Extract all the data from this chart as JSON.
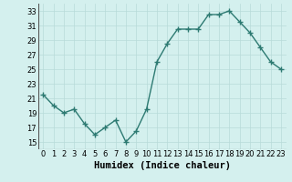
{
  "x": [
    0,
    1,
    2,
    3,
    4,
    5,
    6,
    7,
    8,
    9,
    10,
    11,
    12,
    13,
    14,
    15,
    16,
    17,
    18,
    19,
    20,
    21,
    22,
    23
  ],
  "y": [
    21.5,
    20.0,
    19.0,
    19.5,
    17.5,
    16.0,
    17.0,
    18.0,
    15.0,
    16.5,
    19.5,
    26.0,
    28.5,
    30.5,
    30.5,
    30.5,
    32.5,
    32.5,
    33.0,
    31.5,
    30.0,
    28.0,
    26.0,
    25.0
  ],
  "xlabel": "Humidex (Indice chaleur)",
  "xlim": [
    -0.5,
    23.5
  ],
  "ylim": [
    14,
    34
  ],
  "yticks": [
    15,
    17,
    19,
    21,
    23,
    25,
    27,
    29,
    31,
    33
  ],
  "xticks": [
    0,
    1,
    2,
    3,
    4,
    5,
    6,
    7,
    8,
    9,
    10,
    11,
    12,
    13,
    14,
    15,
    16,
    17,
    18,
    19,
    20,
    21,
    22,
    23
  ],
  "xtick_labels": [
    "0",
    "1",
    "2",
    "3",
    "4",
    "5",
    "6",
    "7",
    "8",
    "9",
    "10",
    "11",
    "12",
    "13",
    "14",
    "15",
    "16",
    "17",
    "18",
    "19",
    "20",
    "21",
    "22",
    "23"
  ],
  "line_color": "#2d7a72",
  "marker": "+",
  "marker_size": 4,
  "line_width": 1.0,
  "bg_color": "#d4f0ee",
  "grid_color": "#b8dbd9",
  "tick_fontsize": 6,
  "xlabel_fontsize": 7.5
}
